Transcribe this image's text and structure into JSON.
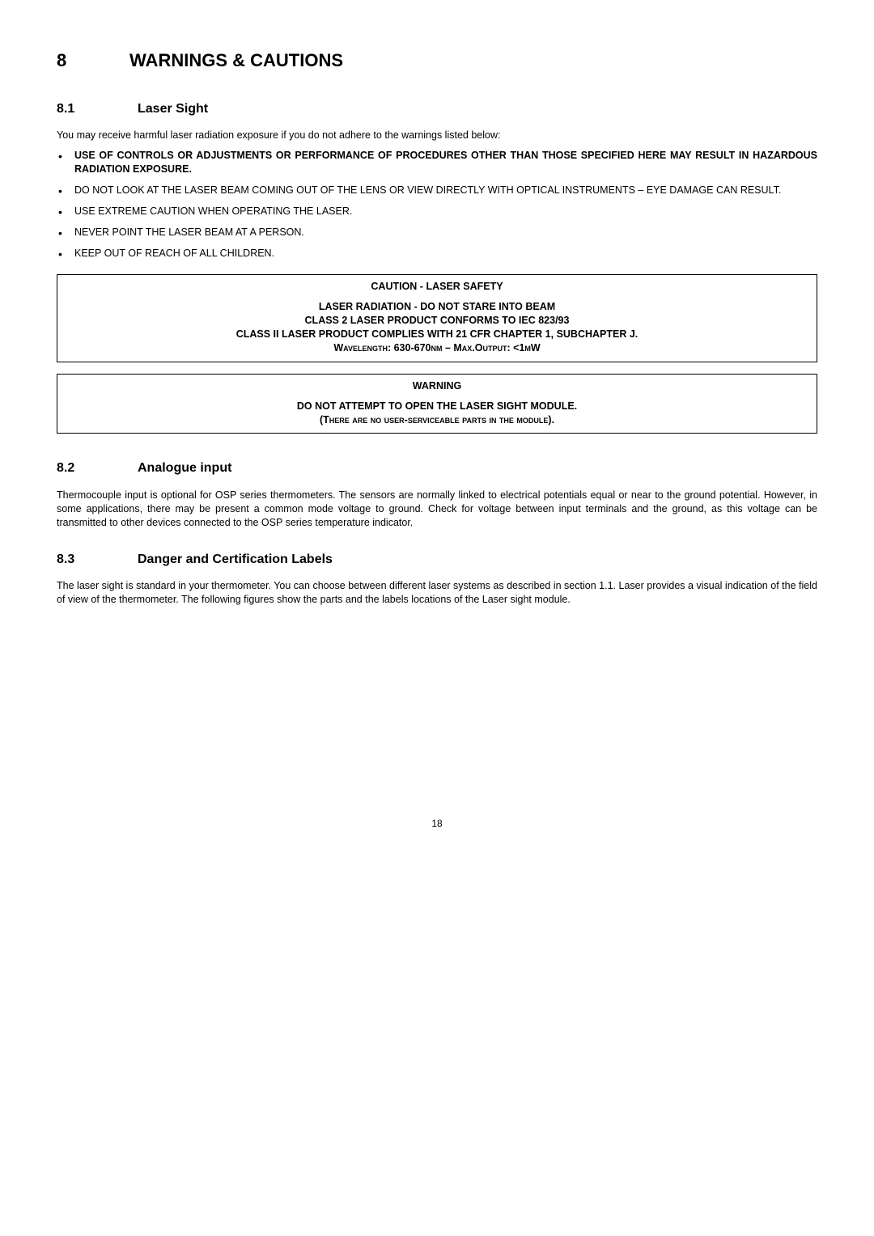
{
  "heading1": {
    "num": "8",
    "title": "WARNINGS & CAUTIONS"
  },
  "sec81": {
    "num": "8.1",
    "title": "Laser Sight",
    "intro": "You may receive harmful laser radiation exposure if you do not adhere to the warnings listed below:",
    "b1": "USE OF CONTROLS OR ADJUSTMENTS OR PERFORMANCE OF PROCEDURES OTHER THAN THOSE SPECIFIED HERE MAY RESULT IN HAZARDOUS RADIATION EXPOSURE.",
    "b2": "DO NOT LOOK AT THE LASER BEAM COMING OUT OF THE LENS OR VIEW DIRECTLY WITH OPTICAL INSTRUMENTS – EYE DAMAGE CAN RESULT.",
    "b3": "USE EXTREME CAUTION WHEN OPERATING THE LASER.",
    "b4": "NEVER POINT THE LASER BEAM AT A PERSON.",
    "b5": "KEEP OUT OF REACH OF ALL CHILDREN."
  },
  "box1": {
    "title": "CAUTION  -  LASER SAFETY",
    "l1": "LASER RADIATION - DO NOT STARE INTO BEAM",
    "l2": "CLASS 2 LASER PRODUCT CONFORMS TO IEC 823/93",
    "l3": "CLASS II LASER PRODUCT COMPLIES WITH 21 CFR CHAPTER 1, SUBCHAPTER J.",
    "l4": "Wavelength: 630-670nm – Max.Output: <1mW"
  },
  "box2": {
    "title": "WARNING",
    "l1": "DO NOT ATTEMPT TO OPEN THE LASER SIGHT MODULE.",
    "l2": "(There are no user-serviceable parts in the module)."
  },
  "sec82": {
    "num": "8.2",
    "title": "Analogue input",
    "p": "Thermocouple input is optional for OSP series thermometers. The sensors are normally linked to electrical potentials equal or near to the ground potential. However, in some applications, there may be present a common mode voltage to ground. Check for voltage between input terminals and the ground, as this voltage can be transmitted to other devices connected to the OSP series temperature indicator."
  },
  "sec83": {
    "num": "8.3",
    "title": "Danger and Certification Labels",
    "p": "The laser sight is standard in your thermometer. You can choose between different laser systems as described in section 1.1. Laser provides a visual indication of the field of view of the thermometer. The following figures show the parts and the labels locations of the Laser sight module."
  },
  "pagenum": "18"
}
